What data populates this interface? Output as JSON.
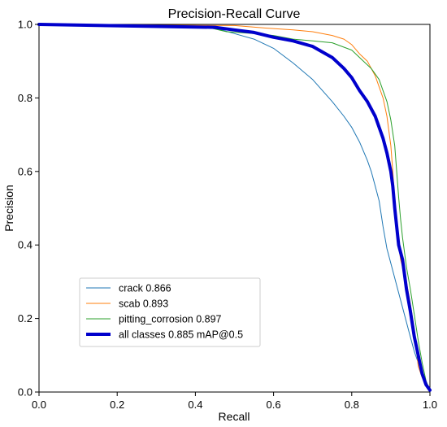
{
  "chart_data": {
    "type": "line",
    "title": "Precision-Recall Curve",
    "xlabel": "Recall",
    "ylabel": "Precision",
    "xlim": [
      0,
      1
    ],
    "ylim": [
      0,
      1
    ],
    "xticks": [
      "0.0",
      "0.2",
      "0.4",
      "0.6",
      "0.8",
      "1.0"
    ],
    "yticks": [
      "0.0",
      "0.2",
      "0.4",
      "0.6",
      "0.8",
      "1.0"
    ],
    "grid": false,
    "legend_position": "lower-left",
    "series": [
      {
        "name": "crack 0.866",
        "color": "#1f77b4",
        "linewidth": 1,
        "points": [
          [
            0,
            1
          ],
          [
            0.4,
            0.997
          ],
          [
            0.45,
            0.99
          ],
          [
            0.5,
            0.975
          ],
          [
            0.55,
            0.96
          ],
          [
            0.6,
            0.935
          ],
          [
            0.65,
            0.895
          ],
          [
            0.7,
            0.85
          ],
          [
            0.75,
            0.79
          ],
          [
            0.78,
            0.75
          ],
          [
            0.8,
            0.72
          ],
          [
            0.82,
            0.68
          ],
          [
            0.84,
            0.63
          ],
          [
            0.85,
            0.6
          ],
          [
            0.86,
            0.56
          ],
          [
            0.87,
            0.52
          ],
          [
            0.88,
            0.45
          ],
          [
            0.89,
            0.39
          ],
          [
            0.9,
            0.35
          ],
          [
            0.91,
            0.31
          ],
          [
            0.92,
            0.27
          ],
          [
            0.93,
            0.23
          ],
          [
            0.94,
            0.19
          ],
          [
            0.95,
            0.15
          ],
          [
            0.96,
            0.11
          ],
          [
            0.97,
            0.08
          ],
          [
            0.98,
            0.05
          ],
          [
            0.99,
            0.02
          ],
          [
            1.0,
            0.005
          ]
        ]
      },
      {
        "name": "scab 0.893",
        "color": "#ff7f0e",
        "linewidth": 1,
        "points": [
          [
            0,
            1
          ],
          [
            0.5,
            0.997
          ],
          [
            0.58,
            0.99
          ],
          [
            0.65,
            0.985
          ],
          [
            0.7,
            0.98
          ],
          [
            0.75,
            0.97
          ],
          [
            0.78,
            0.96
          ],
          [
            0.8,
            0.945
          ],
          [
            0.82,
            0.92
          ],
          [
            0.84,
            0.9
          ],
          [
            0.86,
            0.86
          ],
          [
            0.87,
            0.83
          ],
          [
            0.88,
            0.8
          ],
          [
            0.89,
            0.75
          ],
          [
            0.9,
            0.67
          ],
          [
            0.905,
            0.6
          ],
          [
            0.91,
            0.52
          ],
          [
            0.915,
            0.45
          ],
          [
            0.92,
            0.4
          ],
          [
            0.925,
            0.36
          ],
          [
            0.93,
            0.34
          ],
          [
            0.94,
            0.3
          ],
          [
            0.95,
            0.24
          ],
          [
            0.96,
            0.17
          ],
          [
            0.965,
            0.12
          ],
          [
            0.97,
            0.07
          ],
          [
            0.98,
            0.04
          ],
          [
            0.99,
            0.02
          ],
          [
            1.0,
            0.005
          ]
        ]
      },
      {
        "name": "pitting_corrosion 0.897",
        "color": "#2ca02c",
        "linewidth": 1,
        "points": [
          [
            0,
            1
          ],
          [
            0.42,
            0.995
          ],
          [
            0.48,
            0.98
          ],
          [
            0.55,
            0.975
          ],
          [
            0.6,
            0.97
          ],
          [
            0.65,
            0.96
          ],
          [
            0.7,
            0.955
          ],
          [
            0.75,
            0.95
          ],
          [
            0.8,
            0.93
          ],
          [
            0.83,
            0.9
          ],
          [
            0.85,
            0.88
          ],
          [
            0.87,
            0.85
          ],
          [
            0.88,
            0.82
          ],
          [
            0.89,
            0.79
          ],
          [
            0.9,
            0.74
          ],
          [
            0.91,
            0.67
          ],
          [
            0.915,
            0.6
          ],
          [
            0.92,
            0.53
          ],
          [
            0.925,
            0.47
          ],
          [
            0.93,
            0.42
          ],
          [
            0.935,
            0.38
          ],
          [
            0.94,
            0.34
          ],
          [
            0.95,
            0.28
          ],
          [
            0.96,
            0.21
          ],
          [
            0.97,
            0.14
          ],
          [
            0.98,
            0.08
          ],
          [
            0.99,
            0.03
          ],
          [
            1.0,
            0.005
          ]
        ]
      },
      {
        "name": "all classes 0.885 mAP@0.5",
        "color": "#0000cc",
        "linewidth": 4,
        "points": [
          [
            0,
            1
          ],
          [
            0.45,
            0.992
          ],
          [
            0.5,
            0.985
          ],
          [
            0.55,
            0.978
          ],
          [
            0.6,
            0.965
          ],
          [
            0.65,
            0.955
          ],
          [
            0.7,
            0.94
          ],
          [
            0.75,
            0.91
          ],
          [
            0.78,
            0.88
          ],
          [
            0.8,
            0.855
          ],
          [
            0.82,
            0.82
          ],
          [
            0.84,
            0.79
          ],
          [
            0.86,
            0.75
          ],
          [
            0.87,
            0.72
          ],
          [
            0.88,
            0.69
          ],
          [
            0.89,
            0.65
          ],
          [
            0.9,
            0.6
          ],
          [
            0.905,
            0.56
          ],
          [
            0.91,
            0.5
          ],
          [
            0.915,
            0.45
          ],
          [
            0.92,
            0.4
          ],
          [
            0.93,
            0.36
          ],
          [
            0.935,
            0.32
          ],
          [
            0.94,
            0.28
          ],
          [
            0.95,
            0.22
          ],
          [
            0.96,
            0.15
          ],
          [
            0.97,
            0.1
          ],
          [
            0.98,
            0.05
          ],
          [
            0.99,
            0.02
          ],
          [
            1.0,
            0.005
          ]
        ]
      }
    ]
  }
}
